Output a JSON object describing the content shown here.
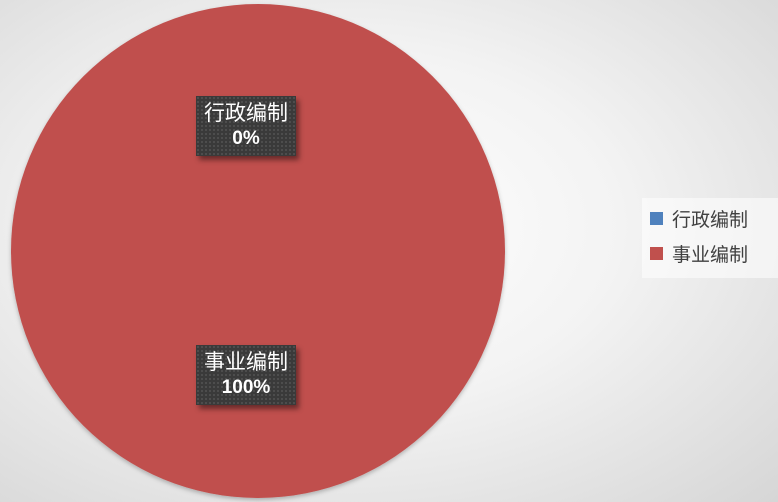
{
  "chart_data": {
    "type": "pie",
    "categories": [
      "行政编制",
      "事业编制"
    ],
    "values": [
      0,
      100
    ],
    "data_labels": [
      {
        "category": "行政编制",
        "percent": "0%"
      },
      {
        "category": "事业编制",
        "percent": "100%"
      }
    ],
    "colors": [
      "#4f81bd",
      "#c0504d"
    ],
    "legend": {
      "position": "right",
      "entries": [
        "行政编制",
        "事业编制"
      ]
    }
  }
}
